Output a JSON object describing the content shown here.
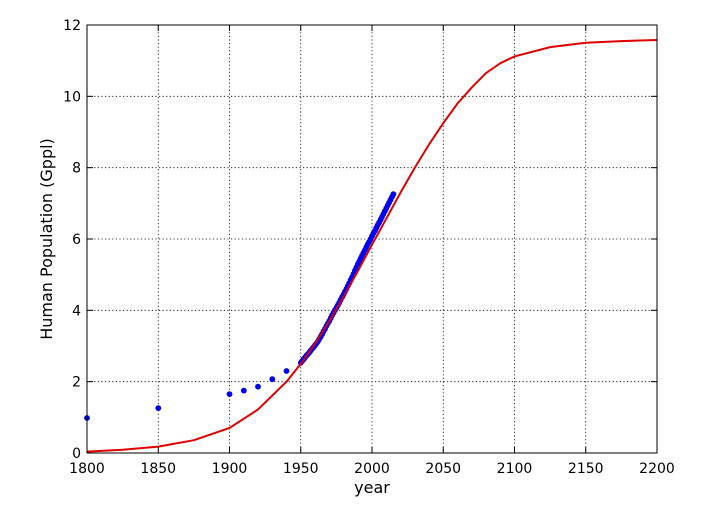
{
  "chart_data": {
    "type": "scatter",
    "title": "",
    "xlabel": "year",
    "ylabel": "Human Population (Gppl)",
    "xlim": [
      1800,
      2200
    ],
    "ylim": [
      0,
      12
    ],
    "xticks": [
      1800,
      1850,
      1900,
      1950,
      2000,
      2050,
      2100,
      2150,
      2200
    ],
    "yticks": [
      0,
      2,
      4,
      6,
      8,
      10,
      12
    ],
    "grid": true,
    "legend": "none",
    "series": [
      {
        "kind": "scatter",
        "color": "#0000ee",
        "points": [
          [
            1800,
            0.98
          ],
          [
            1850,
            1.26
          ],
          [
            1900,
            1.65
          ],
          [
            1910,
            1.75
          ],
          [
            1920,
            1.86
          ],
          [
            1930,
            2.07
          ],
          [
            1940,
            2.3
          ],
          [
            1950,
            2.53
          ],
          [
            1951,
            2.58
          ],
          [
            1952,
            2.63
          ],
          [
            1953,
            2.68
          ],
          [
            1954,
            2.73
          ],
          [
            1955,
            2.77
          ],
          [
            1956,
            2.82
          ],
          [
            1957,
            2.87
          ],
          [
            1958,
            2.92
          ],
          [
            1959,
            2.97
          ],
          [
            1960,
            3.02
          ],
          [
            1961,
            3.07
          ],
          [
            1962,
            3.13
          ],
          [
            1963,
            3.2
          ],
          [
            1964,
            3.26
          ],
          [
            1965,
            3.33
          ],
          [
            1966,
            3.41
          ],
          [
            1967,
            3.48
          ],
          [
            1968,
            3.56
          ],
          [
            1969,
            3.63
          ],
          [
            1970,
            3.7
          ],
          [
            1971,
            3.78
          ],
          [
            1972,
            3.86
          ],
          [
            1973,
            3.93
          ],
          [
            1974,
            4.0
          ],
          [
            1975,
            4.07
          ],
          [
            1976,
            4.14
          ],
          [
            1977,
            4.21
          ],
          [
            1978,
            4.29
          ],
          [
            1979,
            4.37
          ],
          [
            1980,
            4.44
          ],
          [
            1981,
            4.52
          ],
          [
            1982,
            4.6
          ],
          [
            1983,
            4.68
          ],
          [
            1984,
            4.76
          ],
          [
            1985,
            4.85
          ],
          [
            1986,
            4.93
          ],
          [
            1987,
            5.02
          ],
          [
            1988,
            5.11
          ],
          [
            1989,
            5.2
          ],
          [
            1990,
            5.29
          ],
          [
            1991,
            5.37
          ],
          [
            1992,
            5.45
          ],
          [
            1993,
            5.53
          ],
          [
            1994,
            5.61
          ],
          [
            1995,
            5.69
          ],
          [
            1996,
            5.77
          ],
          [
            1997,
            5.85
          ],
          [
            1998,
            5.92
          ],
          [
            1999,
            6.0
          ],
          [
            2000,
            6.08
          ],
          [
            2001,
            6.16
          ],
          [
            2002,
            6.23
          ],
          [
            2003,
            6.31
          ],
          [
            2004,
            6.39
          ],
          [
            2005,
            6.46
          ],
          [
            2006,
            6.54
          ],
          [
            2007,
            6.62
          ],
          [
            2008,
            6.7
          ],
          [
            2009,
            6.78
          ],
          [
            2010,
            6.86
          ],
          [
            2011,
            6.94
          ],
          [
            2012,
            7.02
          ],
          [
            2013,
            7.1
          ],
          [
            2014,
            7.18
          ],
          [
            2015,
            7.26
          ]
        ]
      },
      {
        "kind": "line",
        "color": "#dd0000",
        "x": [
          1800,
          1825,
          1850,
          1875,
          1900,
          1920,
          1940,
          1950,
          1960,
          1970,
          1980,
          1990,
          2000,
          2010,
          2020,
          2030,
          2040,
          2050,
          2060,
          2070,
          2080,
          2090,
          2100,
          2125,
          2150,
          2175,
          2200
        ],
        "y": [
          0.04,
          0.09,
          0.18,
          0.36,
          0.7,
          1.22,
          2.0,
          2.5,
          3.06,
          3.7,
          4.38,
          5.1,
          5.84,
          6.57,
          7.3,
          8.0,
          8.65,
          9.25,
          9.8,
          10.25,
          10.65,
          10.93,
          11.12,
          11.38,
          11.5,
          11.55,
          11.58
        ]
      }
    ]
  }
}
